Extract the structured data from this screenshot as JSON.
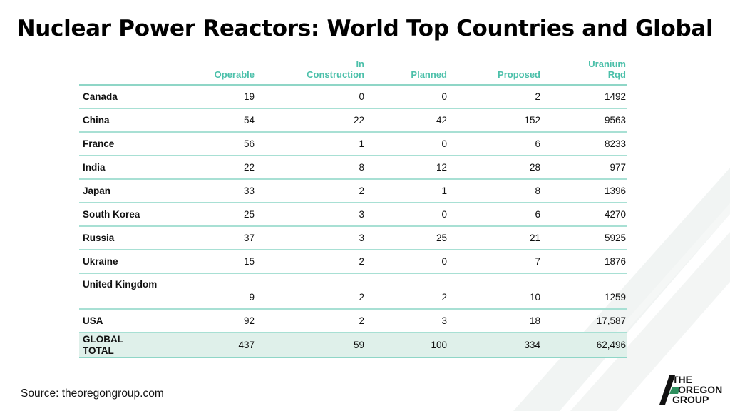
{
  "title": "Nuclear Power Reactors: World Top Countries and Global",
  "source": "Source: theoregongroup.com",
  "logo": {
    "line1": "THE",
    "line2": "OREGON",
    "line3": "GROUP",
    "icon": "oregon-group-logo-mark"
  },
  "colors": {
    "header": "#4cc0aa",
    "rule": "#a8e0d4",
    "total_bg": "#dff0ea"
  },
  "chart_data": {
    "type": "table",
    "title": "Nuclear Power Reactors: World Top Countries and Global",
    "columns": [
      "",
      "Operable",
      "In\nConstruction",
      "Planned",
      "Proposed",
      "Uranium\nRqd"
    ],
    "rows": [
      [
        "Canada",
        "19",
        "0",
        "0",
        "2",
        "1492"
      ],
      [
        "China",
        "54",
        "22",
        "42",
        "152",
        "9563"
      ],
      [
        "France",
        "56",
        "1",
        "0",
        "6",
        "8233"
      ],
      [
        "India",
        "22",
        "8",
        "12",
        "28",
        "977"
      ],
      [
        "Japan",
        "33",
        "2",
        "1",
        "8",
        "1396"
      ],
      [
        "South Korea",
        "25",
        "3",
        "0",
        "6",
        "4270"
      ],
      [
        "Russia",
        "37",
        "3",
        "25",
        "21",
        "5925"
      ],
      [
        "Ukraine",
        "15",
        "2",
        "0",
        "7",
        "1876"
      ],
      [
        "United Kingdom",
        "9",
        "2",
        "2",
        "10",
        "1259"
      ],
      [
        "USA",
        "92",
        "2",
        "3",
        "18",
        "17,587"
      ],
      [
        "GLOBAL\nTOTAL",
        "437",
        "59",
        "100",
        "334",
        "62,496"
      ]
    ]
  }
}
